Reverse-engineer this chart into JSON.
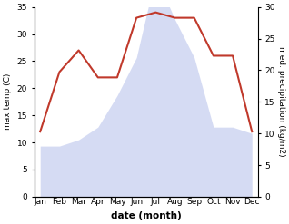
{
  "months": [
    "Jan",
    "Feb",
    "Mar",
    "Apr",
    "May",
    "Jun",
    "Jul",
    "Aug",
    "Sep",
    "Oct",
    "Nov",
    "Dec"
  ],
  "temperature": [
    12,
    23,
    27,
    22,
    22,
    33,
    34,
    33,
    33,
    26,
    26,
    12
  ],
  "precipitation": [
    8,
    8,
    9,
    11,
    16,
    22,
    35,
    28,
    22,
    11,
    11,
    10
  ],
  "temp_color": "#c0392b",
  "precip_fill_color": "#c8d0f0",
  "temp_ylim": [
    0,
    35
  ],
  "precip_ylim": [
    0,
    30
  ],
  "temp_yticks": [
    0,
    5,
    10,
    15,
    20,
    25,
    30,
    35
  ],
  "precip_yticks": [
    0,
    5,
    10,
    15,
    20,
    25,
    30
  ],
  "ylabel_left": "max temp (C)",
  "ylabel_right": "med. precipitation (kg/m2)",
  "xlabel": "date (month)",
  "background_color": "#ffffff",
  "temp_linewidth": 1.5,
  "precip_alpha": 0.75,
  "figsize": [
    3.18,
    2.47
  ],
  "dpi": 100
}
